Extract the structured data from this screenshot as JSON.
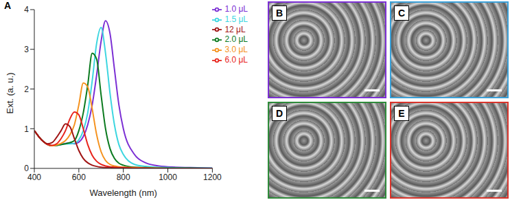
{
  "chart_data": {
    "type": "line",
    "title": "A",
    "xlabel": "Wavelength (nm)",
    "ylabel": "Ext. (a. u.)",
    "x": [
      400,
      420,
      440,
      460,
      480,
      500,
      520,
      540,
      560,
      580,
      600,
      620,
      640,
      660,
      680,
      700,
      720,
      740,
      760,
      780,
      800,
      850,
      900,
      950,
      1000,
      1100,
      1200
    ],
    "xlim": [
      400,
      1200
    ],
    "xticks": [
      400,
      600,
      800,
      1000,
      1200
    ],
    "ylim": [
      0,
      4
    ],
    "yticks": [
      0,
      1,
      2,
      3,
      4
    ],
    "legend": "upper right",
    "series": [
      {
        "name": "1.0 μL",
        "color": "#7b2fd4",
        "values": [
          0.95,
          0.8,
          0.68,
          0.6,
          0.57,
          0.58,
          0.6,
          0.63,
          0.64,
          0.62,
          0.66,
          0.8,
          1.1,
          1.6,
          2.35,
          3.2,
          3.72,
          3.4,
          2.5,
          1.6,
          1.0,
          0.35,
          0.14,
          0.07,
          0.04,
          0.02,
          0.01
        ]
      },
      {
        "name": "1.5 μL",
        "color": "#3dd6e0",
        "values": [
          0.95,
          0.8,
          0.68,
          0.6,
          0.57,
          0.58,
          0.6,
          0.62,
          0.62,
          0.63,
          0.72,
          0.95,
          1.4,
          2.2,
          3.15,
          3.55,
          2.9,
          1.9,
          1.1,
          0.6,
          0.35,
          0.1,
          0.05,
          0.03,
          0.02,
          0.01,
          0.01
        ]
      },
      {
        "name": "2.0 μL",
        "color": "#0b7a1f",
        "values": [
          0.95,
          0.8,
          0.68,
          0.6,
          0.57,
          0.58,
          0.6,
          0.62,
          0.65,
          0.7,
          0.95,
          1.4,
          2.1,
          2.9,
          2.75,
          1.85,
          1.0,
          0.5,
          0.25,
          0.13,
          0.08,
          0.03,
          0.02,
          0.01,
          0.01,
          0.01,
          0.0
        ]
      },
      {
        "name": "3.0 μL",
        "color": "#f5921e",
        "values": [
          0.95,
          0.8,
          0.68,
          0.6,
          0.57,
          0.59,
          0.63,
          0.7,
          0.85,
          1.1,
          1.6,
          2.15,
          2.05,
          1.5,
          0.85,
          0.42,
          0.2,
          0.1,
          0.06,
          0.04,
          0.03,
          0.02,
          0.01,
          0.01,
          0.0,
          0.0,
          0.0
        ]
      },
      {
        "name": "6.0 μL",
        "color": "#e8241c",
        "values": [
          0.95,
          0.8,
          0.68,
          0.6,
          0.58,
          0.62,
          0.75,
          0.95,
          1.25,
          1.42,
          1.35,
          1.0,
          0.6,
          0.33,
          0.18,
          0.1,
          0.06,
          0.04,
          0.03,
          0.02,
          0.02,
          0.01,
          0.01,
          0.0,
          0.0,
          0.0,
          0.0
        ]
      },
      {
        "name": "12 μL",
        "color": "#a01414",
        "values": [
          0.95,
          0.8,
          0.68,
          0.62,
          0.65,
          0.78,
          0.95,
          1.12,
          1.05,
          0.75,
          0.45,
          0.25,
          0.14,
          0.08,
          0.05,
          0.03,
          0.02,
          0.02,
          0.01,
          0.01,
          0.01,
          0.0,
          0.0,
          0.0,
          0.0,
          0.0,
          0.0
        ]
      }
    ]
  },
  "images": [
    {
      "label": "B",
      "color": "#7b2fd4"
    },
    {
      "label": "C",
      "color": "#3aa0d8"
    },
    {
      "label": "D",
      "color": "#2e8b3a"
    },
    {
      "label": "E",
      "color": "#d9342b"
    }
  ]
}
